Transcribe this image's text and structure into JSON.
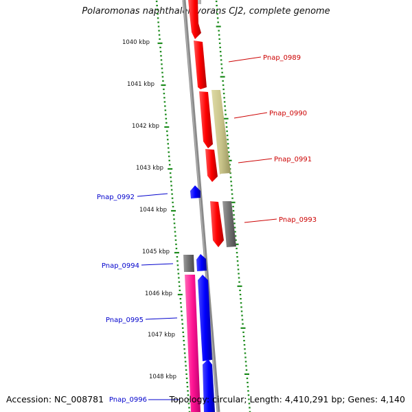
{
  "title": "Polaromonas naphthalenivorans CJ2, complete genome",
  "footer": {
    "accession": "Accession: NC_008781",
    "summary": "Topology: circular; Length: 4,410,291 bp; Genes: 4,140"
  },
  "colors": {
    "backbone": "#808080",
    "tick": "#1a8a1a",
    "forward_label": "#cc0000",
    "reverse_label": "#0000cc",
    "red": "#ff0000",
    "khaki": "#c9c48a",
    "gray": "#707070",
    "blue": "#0000ff",
    "pink": "#ff1493"
  },
  "scale_labels": [
    "1040 kbp",
    "1041 kbp",
    "1042 kbp",
    "1043 kbp",
    "1044 kbp",
    "1045 kbp",
    "1046 kbp",
    "1047 kbp",
    "1048 kbp"
  ],
  "gene_labels": [
    {
      "text": "Pnap_0989",
      "side": "right",
      "color": "forward_label"
    },
    {
      "text": "Pnap_0990",
      "side": "right",
      "color": "forward_label"
    },
    {
      "text": "Pnap_0991",
      "side": "right",
      "color": "forward_label"
    },
    {
      "text": "Pnap_0992",
      "side": "left",
      "color": "reverse_label"
    },
    {
      "text": "Pnap_0993",
      "side": "right",
      "color": "forward_label"
    },
    {
      "text": "Pnap_0994",
      "side": "left",
      "color": "reverse_label"
    },
    {
      "text": "Pnap_0995",
      "side": "left",
      "color": "reverse_label"
    },
    {
      "text": "Pnap_0996",
      "side": "left",
      "color": "reverse_label"
    }
  ]
}
